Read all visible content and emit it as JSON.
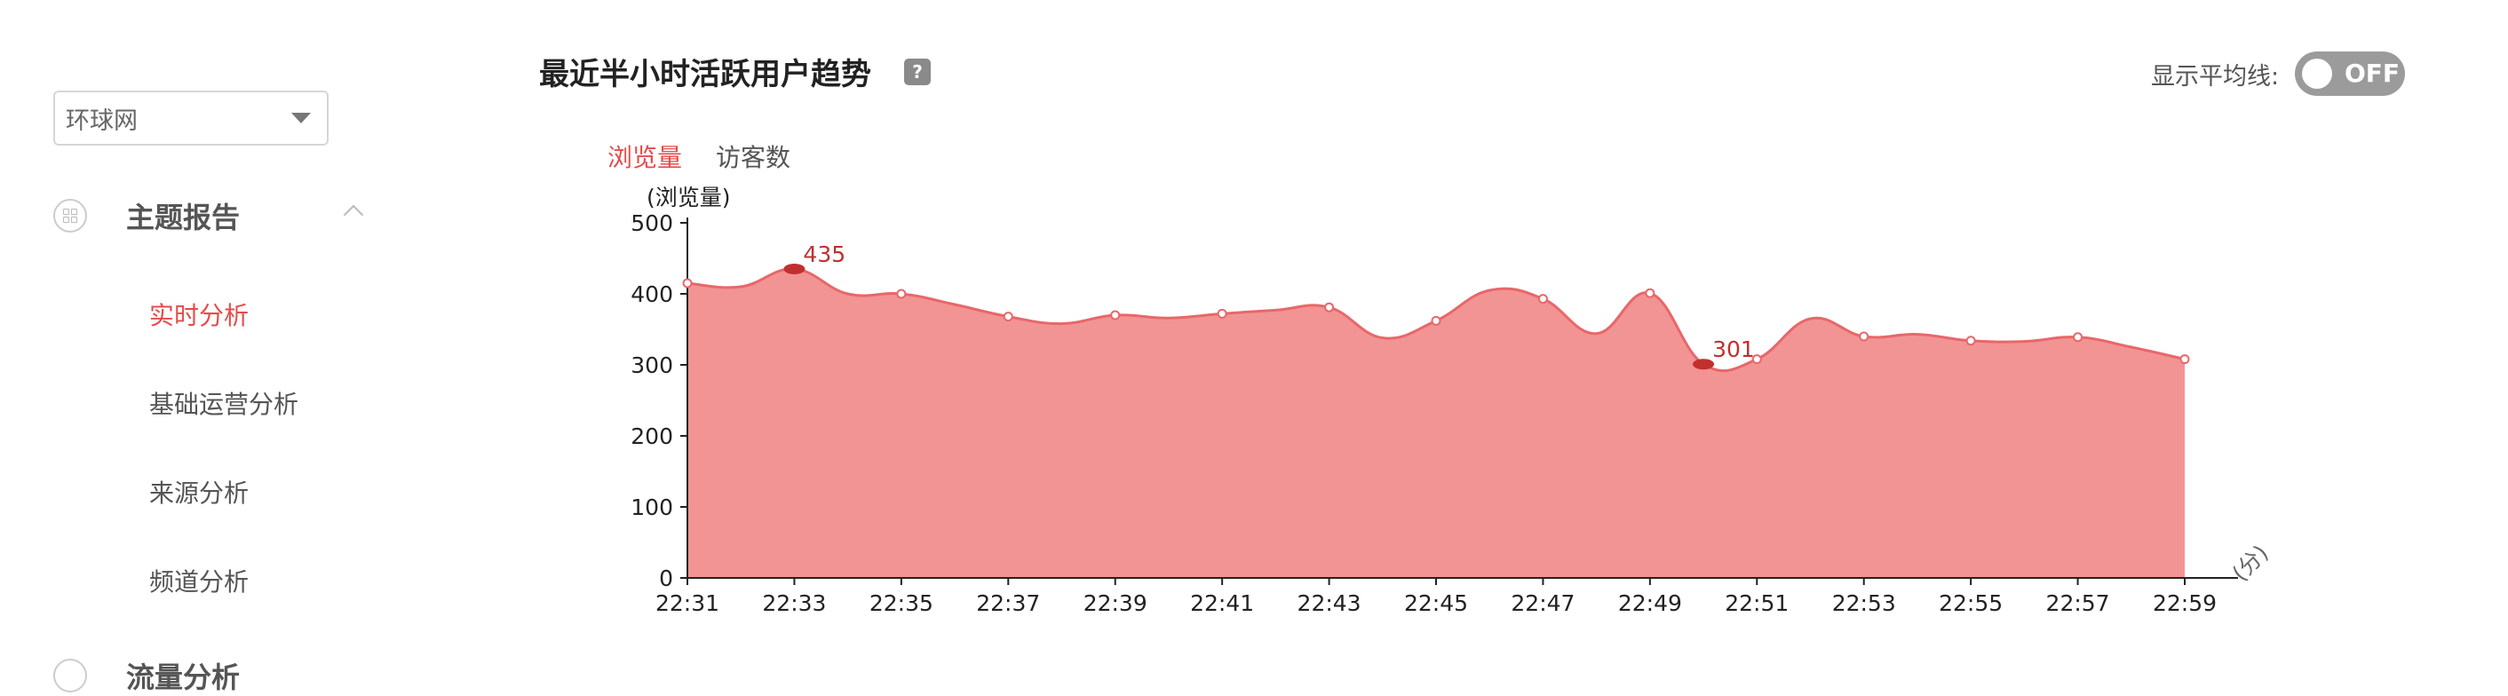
{
  "sidebar": {
    "site_select": {
      "value": "环球网"
    },
    "group": {
      "label": "主题报告",
      "icon": "grid-icon"
    },
    "items": [
      {
        "label": "实时分析",
        "active": true
      },
      {
        "label": "基础运营分析",
        "active": false
      },
      {
        "label": "来源分析",
        "active": false
      },
      {
        "label": "频道分析",
        "active": false
      }
    ],
    "group2": {
      "label": "流量分析"
    }
  },
  "header": {
    "title": "最近半小时活跃用户趋势",
    "help": "?",
    "avg_label": "显示平均线:",
    "toggle_state": "OFF"
  },
  "tabs": [
    {
      "label": "浏览量",
      "active": true
    },
    {
      "label": "访客数",
      "active": false
    }
  ],
  "colors": {
    "accent": "#e64b4b",
    "area_fill": "#f29493",
    "line": "#e8676a",
    "marker": "#c0302f"
  },
  "chart_data": {
    "type": "area",
    "ylabel": "(浏览量)",
    "xunit": "(分)",
    "ylim": [
      0,
      500
    ],
    "yticks": [
      0,
      100,
      200,
      300,
      400,
      500
    ],
    "x": [
      "22:31",
      "22:32",
      "22:33",
      "22:34",
      "22:35",
      "22:36",
      "22:37",
      "22:38",
      "22:39",
      "22:40",
      "22:41",
      "22:42",
      "22:43",
      "22:44",
      "22:45",
      "22:46",
      "22:47",
      "22:48",
      "22:49",
      "22:50",
      "22:51",
      "22:52",
      "22:53",
      "22:54",
      "22:55",
      "22:56",
      "22:57",
      "22:58",
      "22:59"
    ],
    "xticks": [
      "22:31",
      "22:33",
      "22:35",
      "22:37",
      "22:39",
      "22:41",
      "22:43",
      "22:45",
      "22:47",
      "22:49",
      "22:51",
      "22:53",
      "22:55",
      "22:57",
      "22:59"
    ],
    "values": [
      415,
      410,
      435,
      400,
      400,
      385,
      368,
      358,
      370,
      366,
      372,
      377,
      381,
      338,
      362,
      405,
      393,
      344,
      401,
      301,
      308,
      365,
      340,
      343,
      334,
      333,
      339,
      325,
      308
    ],
    "annotations": [
      {
        "x": "22:33",
        "value": 435,
        "label": "435"
      },
      {
        "x": "22:50",
        "value": 301,
        "label": "301"
      }
    ]
  }
}
